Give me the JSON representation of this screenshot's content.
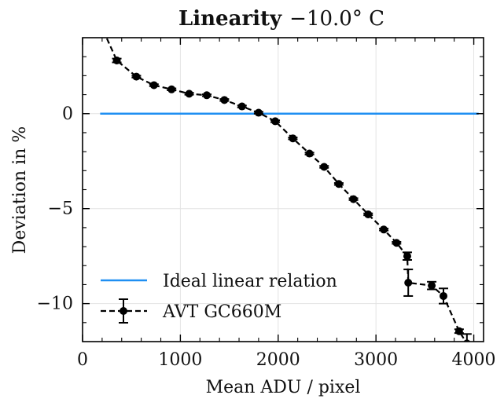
{
  "chart_data": {
    "type": "line",
    "title_bold": "Linearity",
    "title_rest": "−10.0° C",
    "xlabel": "Mean ADU / pixel",
    "ylabel": "Deviation in %",
    "xlim": [
      0,
      4100
    ],
    "ylim": [
      -12,
      4
    ],
    "xticks": [
      0,
      1000,
      2000,
      3000,
      4000
    ],
    "xtick_labels": [
      "0",
      "1000",
      "2000",
      "3000",
      "4000"
    ],
    "yticks": [
      -10,
      -5,
      0
    ],
    "ytick_labels": [
      "−10",
      "−5",
      "0"
    ],
    "grid": true,
    "legend_position": "bottom-left",
    "series": [
      {
        "name": "Ideal linear relation",
        "kind": "line",
        "color": "#1f8ff2",
        "x": [
          180,
          4050
        ],
        "y": [
          0,
          0
        ]
      },
      {
        "name": "AVT GC660M",
        "kind": "errorbar",
        "color": "#000000",
        "linestyle": "dashed",
        "x": [
          140,
          350,
          550,
          730,
          910,
          1090,
          1270,
          1450,
          1630,
          1800,
          1970,
          2150,
          2320,
          2470,
          2620,
          2770,
          2920,
          3080,
          3210,
          3320,
          3330,
          3570,
          3690,
          3850,
          3930
        ],
        "y": [
          5.2,
          2.8,
          1.95,
          1.5,
          1.28,
          1.05,
          0.97,
          0.72,
          0.38,
          0.05,
          -0.4,
          -1.3,
          -2.1,
          -2.8,
          -3.7,
          -4.5,
          -5.3,
          -6.1,
          -6.8,
          -7.5,
          -8.9,
          -9.05,
          -9.6,
          -11.45,
          -12.1
        ],
        "yerr": [
          0,
          0.1,
          0.05,
          0.05,
          0.05,
          0.05,
          0.05,
          0.05,
          0.05,
          0.05,
          0.05,
          0.05,
          0.05,
          0.05,
          0.05,
          0.05,
          0.05,
          0.05,
          0.05,
          0.2,
          0.7,
          0.2,
          0.4,
          0.1,
          0.5
        ]
      }
    ]
  }
}
